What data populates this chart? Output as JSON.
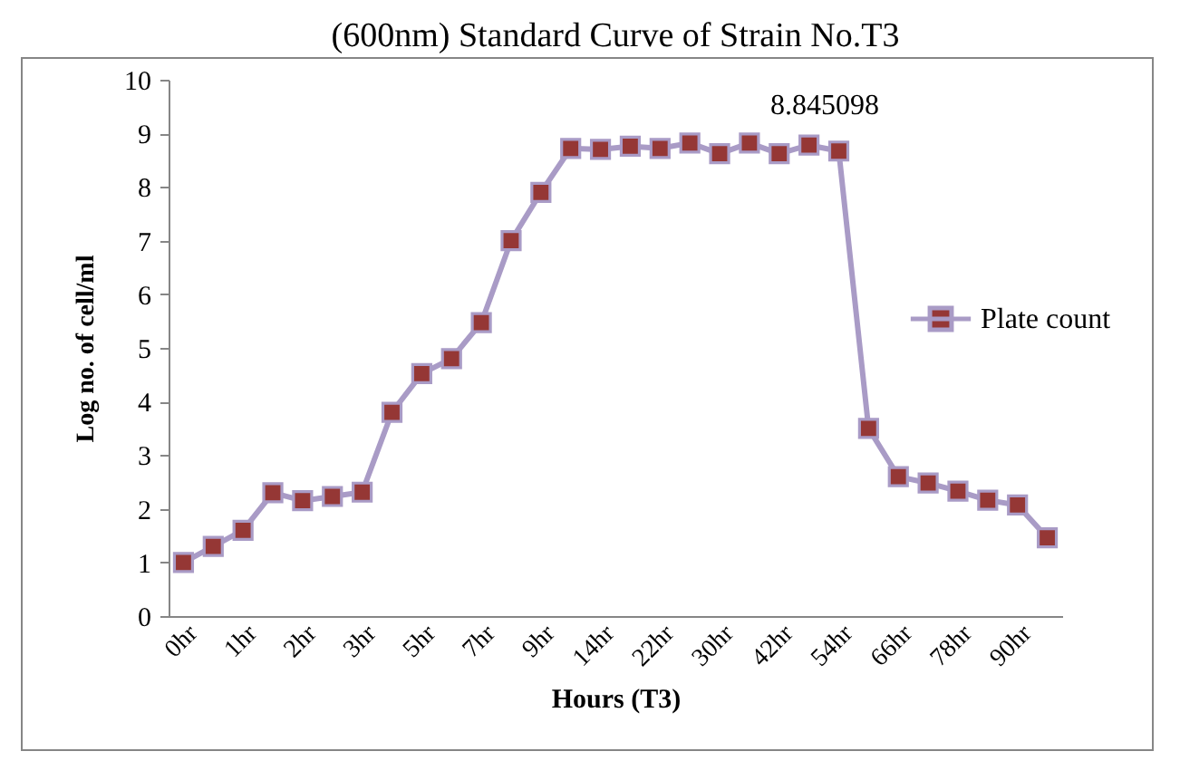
{
  "chart_data": {
    "type": "line",
    "title": "(600nm) Standard Curve of Strain No.T3",
    "xlabel": "Hours (T3)",
    "ylabel": "Log no. of cell/ml",
    "categories": [
      "0hr",
      null,
      "1hr",
      null,
      "2hr",
      null,
      "3hr",
      null,
      "5hr",
      null,
      "7hr",
      null,
      "9hr",
      null,
      "14hr",
      null,
      "22hr",
      null,
      "30hr",
      null,
      "42hr",
      null,
      "54hr",
      null,
      "66hr",
      null,
      "78hr",
      null,
      "90hr",
      null
    ],
    "series": [
      {
        "name": "Plate count",
        "color": "#a99bc6",
        "colors": [
          "#953735",
          "#953735",
          "#953735",
          "#953735",
          "#953735",
          "#953735",
          "#953735",
          "#953735",
          "#953735",
          "#953735",
          "#953735",
          "#953735",
          "#953735",
          "#953735",
          "#953735",
          "#953735",
          "#953735",
          "#953735",
          "#953735",
          "#953735",
          "#953735",
          "#953735",
          "#953735",
          "#953735",
          "#953735",
          "#953735",
          "#953735",
          "#953735",
          "#953735",
          "#953735"
        ],
        "values": [
          1.0,
          1.3,
          1.6,
          2.3,
          2.15,
          2.23,
          2.31,
          3.8,
          4.52,
          4.8,
          5.47,
          7.0,
          7.9,
          8.72,
          8.7,
          8.76,
          8.72,
          8.82,
          8.62,
          8.82,
          8.62,
          8.78,
          8.67,
          3.5,
          2.6,
          2.48,
          2.33,
          2.16,
          2.07,
          1.46
        ]
      }
    ],
    "ylim": [
      0,
      10
    ],
    "yticks": [
      0,
      1,
      2,
      3,
      4,
      5,
      6,
      7,
      8,
      9,
      10
    ],
    "grid": false,
    "legend": "right",
    "marker": "square",
    "line_style": "solid",
    "annotations": [
      "8.845098"
    ]
  }
}
